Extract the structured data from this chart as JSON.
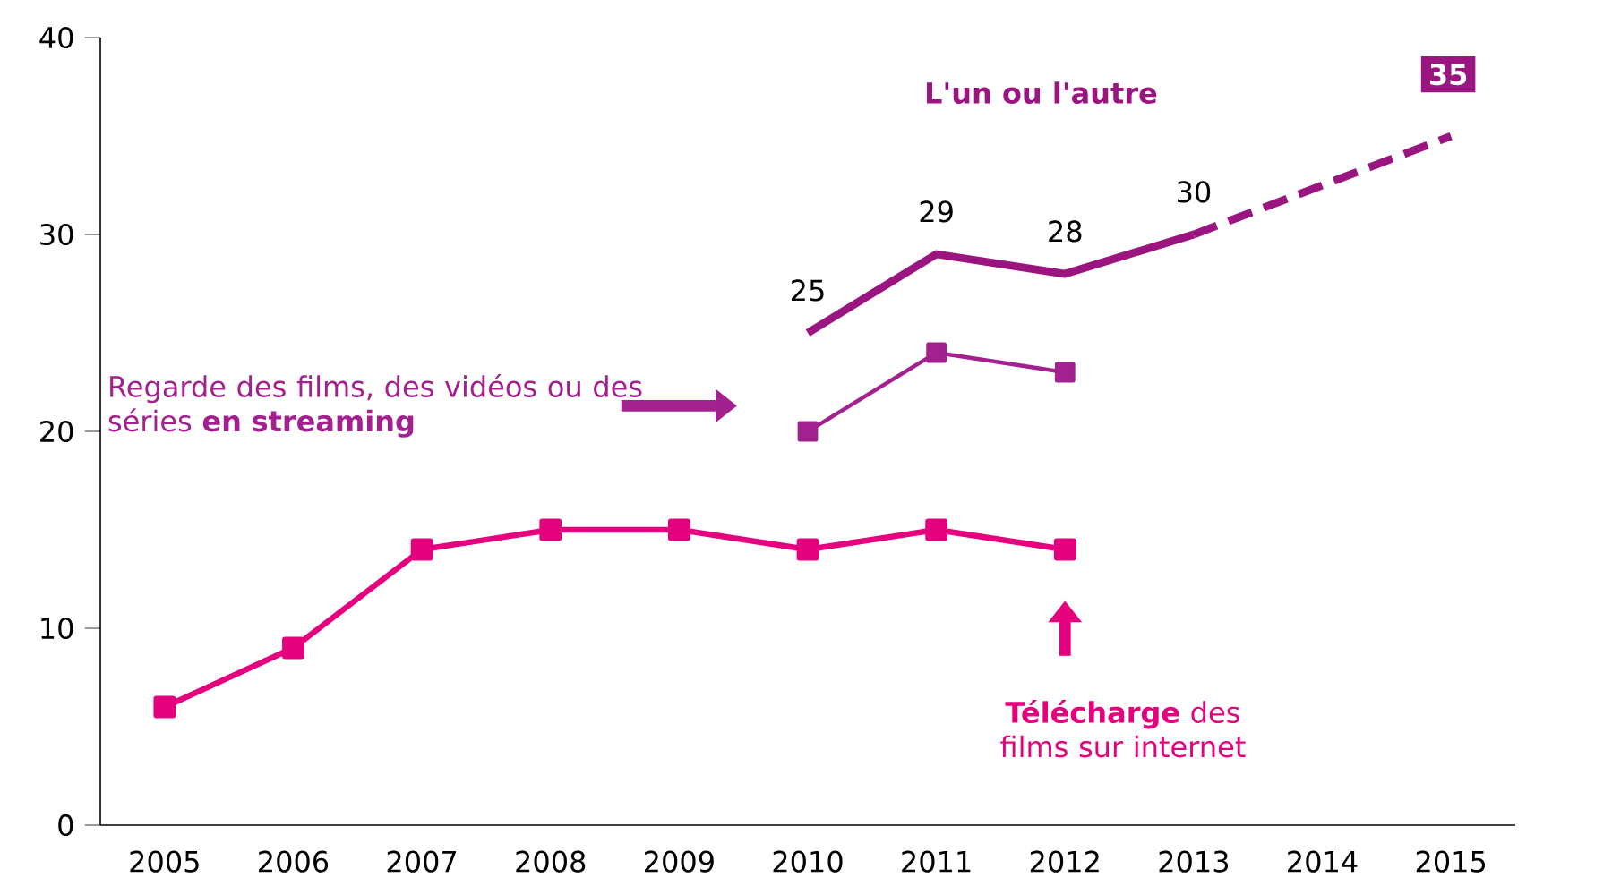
{
  "chart_data": {
    "type": "line",
    "categories": [
      "2005",
      "2006",
      "2007",
      "2008",
      "2009",
      "2010",
      "2011",
      "2012",
      "2013",
      "2014",
      "2015"
    ],
    "ylim": [
      0,
      40
    ],
    "yticks": [
      0,
      10,
      20,
      30,
      40
    ],
    "grid": false,
    "legend": false,
    "series": [
      {
        "name": "L'un  ou l'autre",
        "color": "#9b1580",
        "marker": "none",
        "line_style": "solid",
        "values": [
          null,
          null,
          null,
          null,
          null,
          25,
          29,
          28,
          30,
          null,
          null
        ],
        "value_labels": [
          null,
          null,
          null,
          null,
          null,
          "25",
          "29",
          "28",
          "30",
          null,
          null
        ]
      },
      {
        "color": "#9b1580",
        "marker": "none",
        "line_style": "dashed",
        "values": [
          null,
          null,
          null,
          null,
          null,
          null,
          null,
          null,
          30,
          null,
          35
        ],
        "value_labels": [
          null,
          null,
          null,
          null,
          null,
          null,
          null,
          null,
          null,
          null,
          "35"
        ]
      },
      {
        "name": "Regarde des films, des vidéos ou des séries **en streaming**",
        "color": "#a2218f",
        "marker": "square",
        "line_style": "solid",
        "values": [
          null,
          null,
          null,
          null,
          null,
          20,
          24,
          23,
          null,
          null,
          null
        ]
      },
      {
        "name": "**Télécharge** des films sur internet",
        "color": "#e5007d",
        "marker": "square",
        "line_style": "solid",
        "values": [
          6,
          9,
          14,
          15,
          15,
          14,
          15,
          14,
          null,
          null,
          null
        ]
      }
    ]
  }
}
